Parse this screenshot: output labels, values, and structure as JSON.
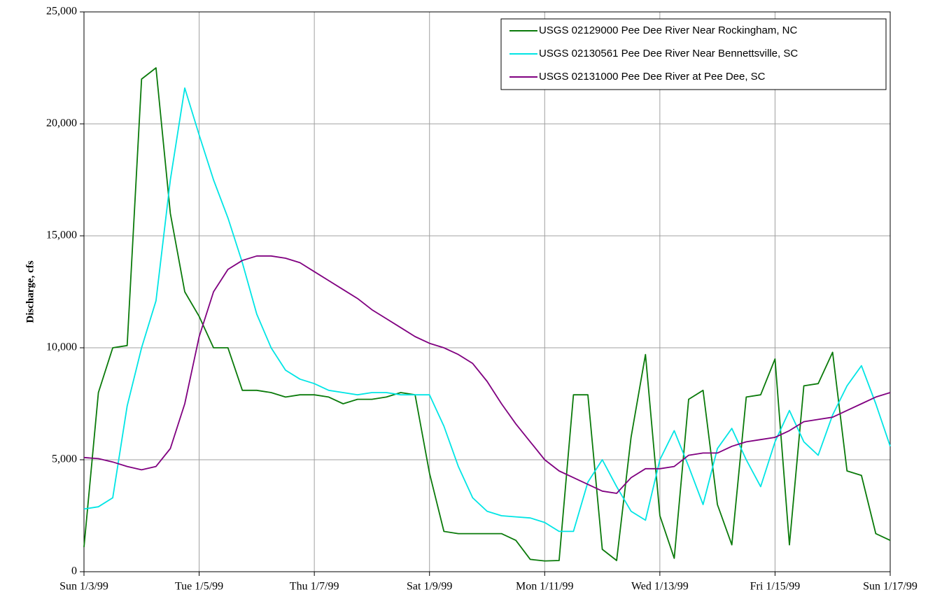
{
  "chart_data": {
    "type": "line",
    "ylabel": "Discharge, cfs",
    "x": [
      0,
      0.25,
      0.5,
      0.75,
      1,
      1.25,
      1.5,
      1.75,
      2,
      2.25,
      2.5,
      2.75,
      3,
      3.25,
      3.5,
      3.75,
      4,
      4.25,
      4.5,
      4.75,
      5,
      5.25,
      5.5,
      5.75,
      6,
      6.25,
      6.5,
      6.75,
      7,
      7.25,
      7.5,
      7.75,
      8,
      8.25,
      8.5,
      8.75,
      9,
      9.25,
      9.5,
      9.75,
      10,
      10.25,
      10.5,
      10.75,
      11,
      11.25,
      11.5,
      11.75,
      12,
      12.25,
      12.5,
      12.75,
      13,
      13.25,
      13.5,
      13.75,
      14
    ],
    "series": [
      {
        "name": "USGS 02129000 Pee Dee River Near Rockingham, NC",
        "color": "#0a7a0a",
        "values": [
          1100,
          8000,
          10000,
          10100,
          22000,
          22500,
          16000,
          12500,
          11400,
          10000,
          10000,
          8100,
          8100,
          8000,
          7800,
          7900,
          7900,
          7800,
          7500,
          7700,
          7700,
          7800,
          8000,
          7900,
          4400,
          1800,
          1700,
          1700,
          1700,
          1700,
          1400,
          550,
          480,
          500,
          7900,
          7900,
          1000,
          500,
          6000,
          9700,
          2500,
          600,
          7700,
          8100,
          3000,
          1200,
          7800,
          7900,
          9500,
          1200,
          8300,
          8400,
          9800,
          4500,
          4300,
          1700,
          1400
        ]
      },
      {
        "name": "USGS 02130561 Pee Dee River Near Bennettsville, SC",
        "color": "#00e5e5",
        "values": [
          2800,
          2900,
          3300,
          7400,
          10000,
          12100,
          17500,
          21600,
          19500,
          17500,
          15800,
          13800,
          11500,
          10000,
          9000,
          8600,
          8400,
          8100,
          8000,
          7900,
          8000,
          8000,
          7900,
          7900,
          7900,
          6500,
          4700,
          3300,
          2700,
          2500,
          2450,
          2400,
          2200,
          1800,
          1800,
          4000,
          5000,
          3800,
          2700,
          2300,
          5000,
          6300,
          4700,
          3000,
          5500,
          6400,
          5000,
          3800,
          5800,
          7200,
          5800,
          5200,
          7000,
          8300,
          9200,
          7500,
          5600
        ]
      },
      {
        "name": "USGS 02131000 Pee Dee River at Pee Dee, SC",
        "color": "#800080",
        "values": [
          5100,
          5050,
          4900,
          4700,
          4550,
          4700,
          5500,
          7500,
          10500,
          12500,
          13500,
          13900,
          14100,
          14100,
          14000,
          13800,
          13400,
          13000,
          12600,
          12200,
          11700,
          11300,
          10900,
          10500,
          10200,
          10000,
          9700,
          9300,
          8500,
          7500,
          6600,
          5800,
          5000,
          4500,
          4200,
          3900,
          3600,
          3500,
          4200,
          4600,
          4600,
          4700,
          5200,
          5300,
          5300,
          5600,
          5800,
          5900,
          6000,
          6300,
          6700,
          6800,
          6900,
          7200,
          7500,
          7800,
          8000
        ]
      }
    ],
    "xlim": [
      0,
      14
    ],
    "xticks": [
      {
        "value": 0,
        "label": "Sun 1/3/99"
      },
      {
        "value": 2,
        "label": "Tue 1/5/99"
      },
      {
        "value": 4,
        "label": "Thu 1/7/99"
      },
      {
        "value": 6,
        "label": "Sat 1/9/99"
      },
      {
        "value": 8,
        "label": "Mon 1/11/99"
      },
      {
        "value": 10,
        "label": "Wed 1/13/99"
      },
      {
        "value": 12,
        "label": "Fri 1/15/99"
      },
      {
        "value": 14,
        "label": "Sun 1/17/99"
      }
    ],
    "ylim": [
      0,
      25000
    ],
    "yticks": [
      0,
      {
        "value": 5000,
        "label": "5,000"
      },
      {
        "value": 10000,
        "label": "10,000"
      },
      {
        "value": 15000,
        "label": "15,000"
      },
      {
        "value": 20000,
        "label": "20,000"
      },
      {
        "value": 25000,
        "label": "25,000"
      }
    ],
    "grid": true,
    "legend": "upper right"
  }
}
